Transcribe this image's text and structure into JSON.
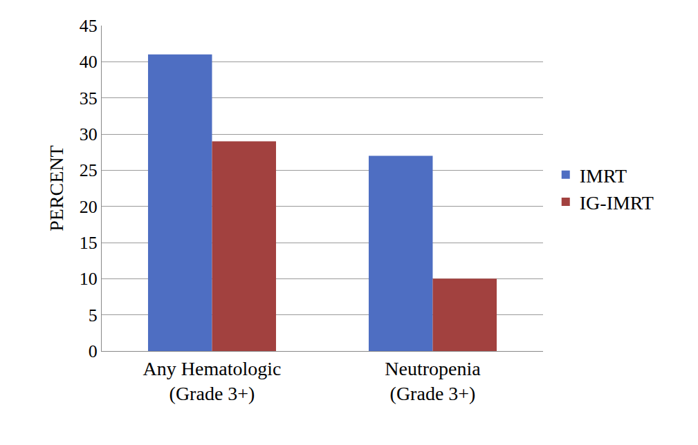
{
  "chart_data": {
    "type": "bar",
    "y_label": "PERCENT",
    "categories": [
      "Any Hematologic (Grade 3+)",
      "Neutropenia (Grade 3+)"
    ],
    "series": [
      {
        "name": "IMRT",
        "color": "#4e6ec2",
        "values": [
          41,
          27
        ]
      },
      {
        "name": "IG-IMRT",
        "color": "#a2413f",
        "values": [
          29,
          10
        ]
      }
    ],
    "ylim": [
      0,
      45
    ],
    "yticks": [
      0,
      5,
      10,
      15,
      20,
      25,
      30,
      35,
      40,
      45
    ],
    "grid": true,
    "legend": "right"
  }
}
